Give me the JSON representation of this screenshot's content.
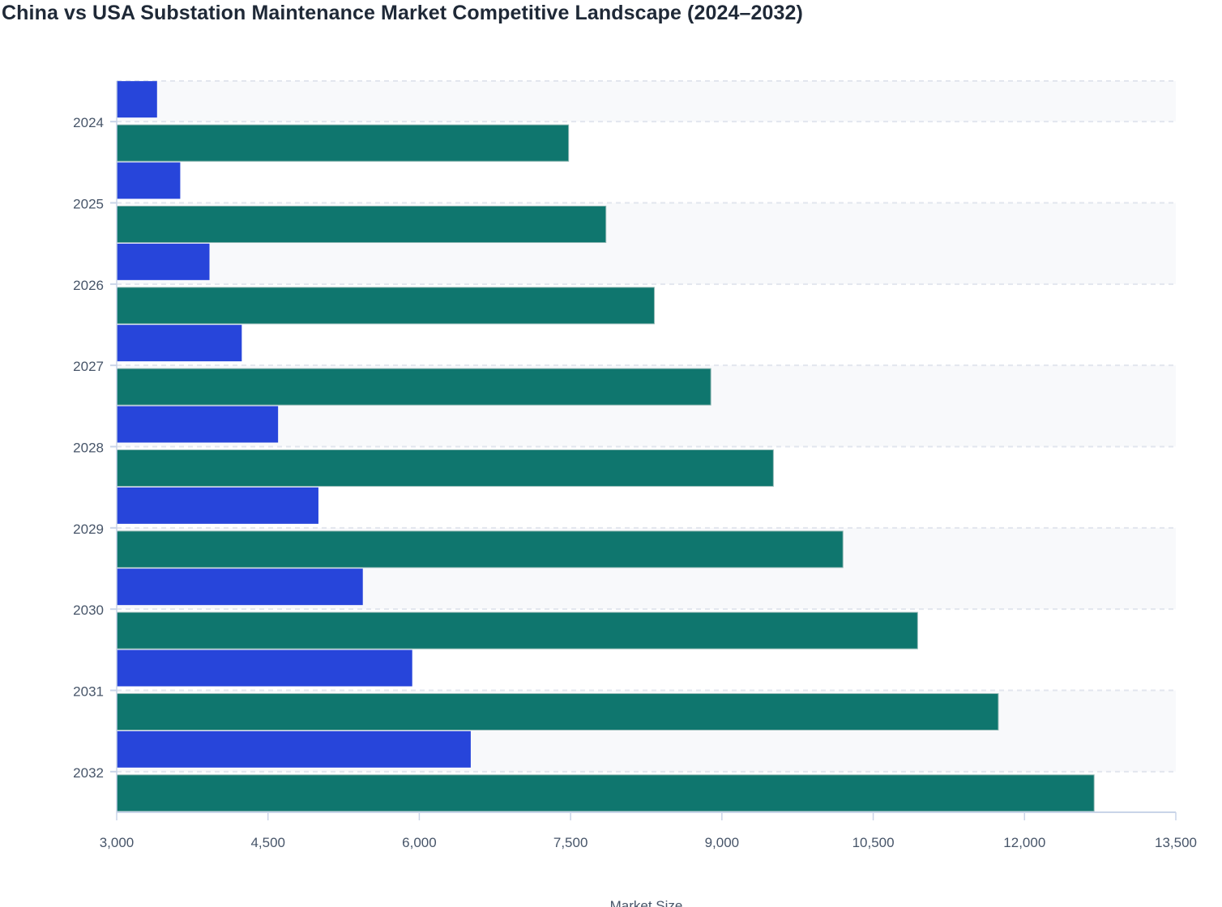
{
  "chart_data": {
    "type": "bar",
    "orientation": "horizontal",
    "title": "China vs USA Substation Maintenance Market Competitive Landscape (2024–2032)",
    "xlabel": "Market Size",
    "ylabel": "",
    "categories": [
      "2024",
      "2025",
      "2026",
      "2027",
      "2028",
      "2029",
      "2030",
      "2031",
      "2032"
    ],
    "series": [
      {
        "values": [
          3400,
          3630,
          3920,
          4240,
          4600,
          5000,
          5440,
          5930,
          6510
        ],
        "color": "#2745da"
      },
      {
        "values": [
          7480,
          7850,
          8330,
          8890,
          9510,
          10200,
          10940,
          11740,
          12690
        ],
        "color": "#0f766e"
      }
    ],
    "xlim": [
      3000,
      13500
    ],
    "xticks": [
      "3,000",
      "4,500",
      "6,000",
      "7,500",
      "9,000",
      "10,500",
      "12,000",
      "13,500"
    ],
    "xtick_values": [
      3000,
      4500,
      6000,
      7500,
      9000,
      10500,
      12000,
      13500
    ],
    "grid": true,
    "legend": "none"
  }
}
